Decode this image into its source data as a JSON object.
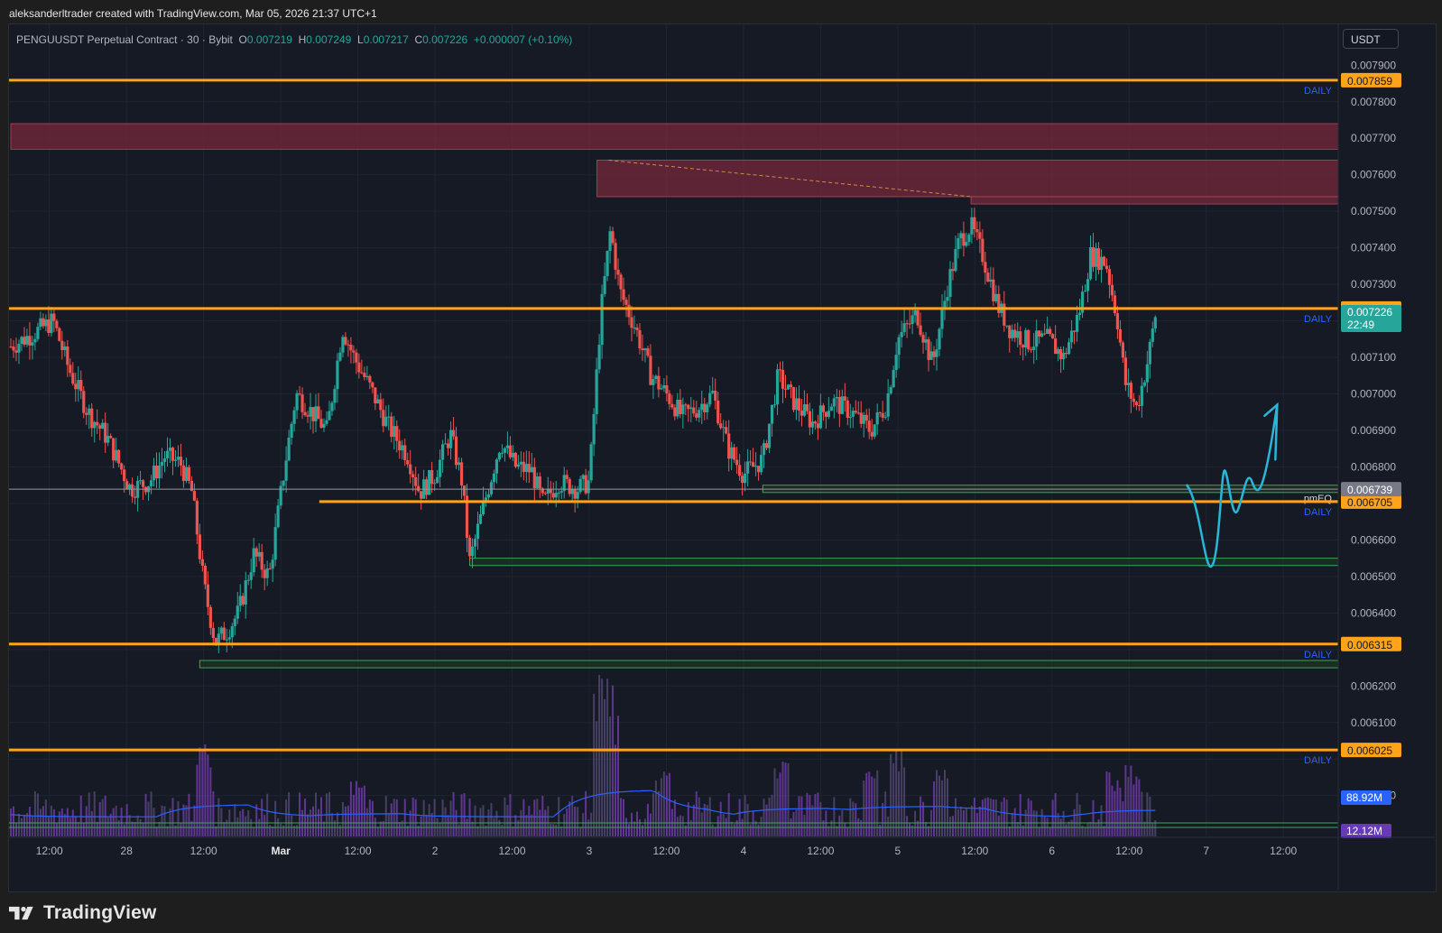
{
  "credit": "aleksanderltrader created with TradingView.com, Mar 05, 2026 21:37 UTC+1",
  "header": {
    "symbol": "PENGUUSDT Perpetual Contract · 30 · Bybit",
    "o_label": "O",
    "o_value": "0.007219",
    "h_label": "H",
    "h_value": "0.007249",
    "l_label": "L",
    "l_value": "0.007217",
    "c_label": "C",
    "c_value": "0.007226",
    "change": "+0.000007 (+0.10%)",
    "currency_button": "USDT"
  },
  "footer": {
    "brand": "TradingView"
  },
  "colors": {
    "background": "#161a25",
    "up": "#26a69a",
    "down": "#ef5350",
    "level": "#ffa31a",
    "zone_red": "#7a2a3a",
    "zone_green": "#3aa856",
    "daily_text": "#2962ff",
    "volume": "#7b3fb8",
    "volume_ma": "#2962ff",
    "projection": "#29b6d8",
    "pmeq": "#9598a1"
  },
  "chart_data": {
    "type": "candlestick",
    "timeframe": "30",
    "y_axis": {
      "min": 0.00584,
      "max": 0.00796,
      "ticks": [
        "0.007900",
        "0.007800",
        "0.007700",
        "0.007600",
        "0.007500",
        "0.007400",
        "0.007300",
        "0.007100",
        "0.007000",
        "0.006900",
        "0.006800",
        "0.006600",
        "0.006500",
        "0.006400",
        "0.006200",
        "0.006100",
        "0.005900"
      ]
    },
    "x_axis": {
      "ticks": [
        "12:00",
        "28",
        "12:00",
        "Mar",
        "12:00",
        "2",
        "12:00",
        "3",
        "12:00",
        "4",
        "12:00",
        "5",
        "12:00",
        "6",
        "12:00",
        "7",
        "12:00"
      ]
    },
    "price_anchors": [
      {
        "t": 0,
        "p": 0.00713
      },
      {
        "t": 0.5,
        "p": 0.00716
      },
      {
        "t": 1.1,
        "p": 0.0072
      },
      {
        "t": 1.5,
        "p": 0.00707
      },
      {
        "t": 2.0,
        "p": 0.00695
      },
      {
        "t": 2.5,
        "p": 0.00688
      },
      {
        "t": 3.1,
        "p": 0.00674
      },
      {
        "t": 3.6,
        "p": 0.00676
      },
      {
        "t": 4.0,
        "p": 0.00683
      },
      {
        "t": 4.4,
        "p": 0.00681
      },
      {
        "t": 4.7,
        "p": 0.00673
      },
      {
        "t": 5.0,
        "p": 0.00648
      },
      {
        "t": 5.3,
        "p": 0.00632
      },
      {
        "t": 5.6,
        "p": 0.00635
      },
      {
        "t": 5.9,
        "p": 0.0064
      },
      {
        "t": 6.3,
        "p": 0.00656
      },
      {
        "t": 6.7,
        "p": 0.0065
      },
      {
        "t": 7.1,
        "p": 0.0068
      },
      {
        "t": 7.4,
        "p": 0.007
      },
      {
        "t": 7.8,
        "p": 0.00695
      },
      {
        "t": 8.2,
        "p": 0.0069
      },
      {
        "t": 8.6,
        "p": 0.00718
      },
      {
        "t": 8.9,
        "p": 0.0071
      },
      {
        "t": 9.3,
        "p": 0.00702
      },
      {
        "t": 9.8,
        "p": 0.00691
      },
      {
        "t": 10.3,
        "p": 0.00683
      },
      {
        "t": 10.6,
        "p": 0.00673
      },
      {
        "t": 11.0,
        "p": 0.00678
      },
      {
        "t": 11.4,
        "p": 0.00689
      },
      {
        "t": 11.7,
        "p": 0.00676
      },
      {
        "t": 11.9,
        "p": 0.00654
      },
      {
        "t": 12.3,
        "p": 0.00671
      },
      {
        "t": 12.7,
        "p": 0.00687
      },
      {
        "t": 13.1,
        "p": 0.0068
      },
      {
        "t": 13.5,
        "p": 0.00679
      },
      {
        "t": 13.8,
        "p": 0.0067
      },
      {
        "t": 14.2,
        "p": 0.00676
      },
      {
        "t": 14.7,
        "p": 0.00674
      },
      {
        "t": 15.0,
        "p": 0.00676
      },
      {
        "t": 15.3,
        "p": 0.00722
      },
      {
        "t": 15.55,
        "p": 0.00745
      },
      {
        "t": 15.8,
        "p": 0.00728
      },
      {
        "t": 16.2,
        "p": 0.00718
      },
      {
        "t": 16.6,
        "p": 0.00705
      },
      {
        "t": 17.0,
        "p": 0.007
      },
      {
        "t": 17.4,
        "p": 0.00694
      },
      {
        "t": 17.8,
        "p": 0.00696
      },
      {
        "t": 18.2,
        "p": 0.007
      },
      {
        "t": 18.6,
        "p": 0.00685
      },
      {
        "t": 19.0,
        "p": 0.00678
      },
      {
        "t": 19.5,
        "p": 0.00682
      },
      {
        "t": 19.9,
        "p": 0.00705
      },
      {
        "t": 20.3,
        "p": 0.00698
      },
      {
        "t": 20.8,
        "p": 0.00692
      },
      {
        "t": 21.3,
        "p": 0.00698
      },
      {
        "t": 21.8,
        "p": 0.00695
      },
      {
        "t": 22.3,
        "p": 0.0069
      },
      {
        "t": 22.7,
        "p": 0.00697
      },
      {
        "t": 23.0,
        "p": 0.00715
      },
      {
        "t": 23.5,
        "p": 0.00722
      },
      {
        "t": 23.9,
        "p": 0.00708
      },
      {
        "t": 24.3,
        "p": 0.0073
      },
      {
        "t": 24.6,
        "p": 0.00742
      },
      {
        "t": 24.9,
        "p": 0.00746
      },
      {
        "t": 25.2,
        "p": 0.00738
      },
      {
        "t": 25.6,
        "p": 0.00724
      },
      {
        "t": 25.9,
        "p": 0.00718
      },
      {
        "t": 26.4,
        "p": 0.00714
      },
      {
        "t": 26.9,
        "p": 0.00715
      },
      {
        "t": 27.3,
        "p": 0.0071
      },
      {
        "t": 27.7,
        "p": 0.00722
      },
      {
        "t": 28.0,
        "p": 0.00738
      },
      {
        "t": 28.4,
        "p": 0.00736
      },
      {
        "t": 28.7,
        "p": 0.0072
      },
      {
        "t": 28.9,
        "p": 0.00703
      },
      {
        "t": 29.2,
        "p": 0.00696
      },
      {
        "t": 29.5,
        "p": 0.0071
      },
      {
        "t": 29.75,
        "p": 0.00726
      }
    ],
    "levels": [
      {
        "price": 0.007859,
        "label": "0.007859",
        "tag": "DAILY",
        "start": 0
      },
      {
        "price": 0.007234,
        "label": "0.007234",
        "tag": "DAILY",
        "start": 0
      },
      {
        "price": 0.006705,
        "label": "0.006705",
        "tag": "DAILY",
        "start": 8.0
      },
      {
        "price": 0.006315,
        "label": "0.006315",
        "tag": "DAILY",
        "start": 0
      },
      {
        "price": 0.006025,
        "label": "0.006025",
        "tag": "DAILY",
        "start": 0
      }
    ],
    "current_price": {
      "label": "0.007226",
      "countdown": "22:49"
    },
    "pmeq": {
      "price": 0.006739,
      "label": "0.006739",
      "name": "pmEQ"
    },
    "supply_zones": [
      {
        "top": 0.00774,
        "bottom": 0.00767,
        "start": 0
      },
      {
        "top": 0.00764,
        "bottom": 0.00754,
        "start": 15.2
      },
      {
        "top": 0.00754,
        "bottom": 0.00752,
        "start": 24.9
      }
    ],
    "demand_zones": [
      {
        "top": 0.00675,
        "bottom": 0.00673,
        "start": 19.5
      },
      {
        "top": 0.00655,
        "bottom": 0.00653,
        "start": 11.9
      },
      {
        "top": 0.00627,
        "bottom": 0.00625,
        "start": 4.9
      }
    ],
    "volume": {
      "label": "88.92M",
      "secondary_label": "12.12M"
    }
  }
}
